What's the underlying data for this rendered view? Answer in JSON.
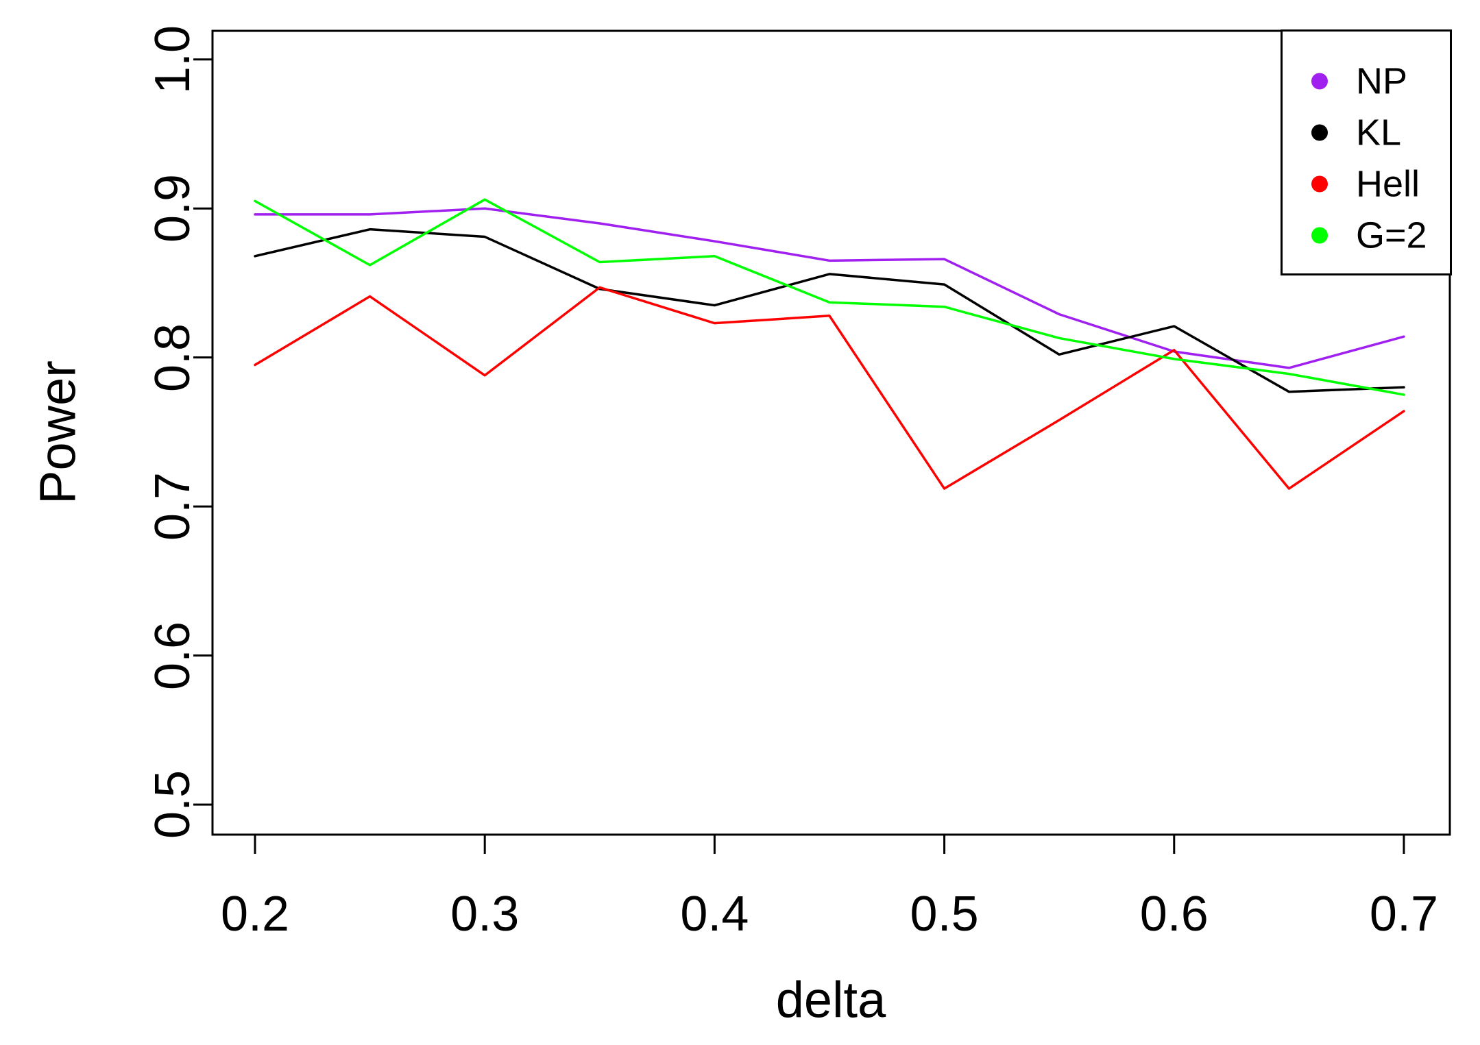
{
  "page": {
    "background": "#ffffff",
    "text_color": "#000000"
  },
  "chart_data": {
    "type": "line",
    "title": "",
    "xlabel": "delta",
    "ylabel": "Power",
    "x": [
      0.2,
      0.25,
      0.3,
      0.35,
      0.4,
      0.45,
      0.5,
      0.55,
      0.6,
      0.65,
      0.7
    ],
    "series": [
      {
        "name": "NP",
        "color": "#A020F0",
        "values": [
          0.896,
          0.896,
          0.9,
          0.89,
          0.878,
          0.865,
          0.866,
          0.829,
          0.804,
          0.793,
          0.814
        ]
      },
      {
        "name": "KL",
        "color": "#000000",
        "values": [
          0.868,
          0.886,
          0.881,
          0.846,
          0.835,
          0.856,
          0.849,
          0.802,
          0.821,
          0.777,
          0.78
        ]
      },
      {
        "name": "Hell",
        "color": "#FF0000",
        "values": [
          0.795,
          0.841,
          0.788,
          0.847,
          0.823,
          0.828,
          0.712,
          0.758,
          0.805,
          0.712,
          0.764
        ]
      },
      {
        "name": "G=2",
        "color": "#00FF00",
        "values": [
          0.905,
          0.862,
          0.906,
          0.864,
          0.868,
          0.837,
          0.834,
          0.813,
          0.799,
          0.789,
          0.775
        ]
      }
    ],
    "x_ticks": {
      "values": [
        0.2,
        0.3,
        0.4,
        0.5,
        0.6,
        0.7
      ],
      "labels": [
        "0.2",
        "0.3",
        "0.4",
        "0.5",
        "0.6",
        "0.7"
      ]
    },
    "y_ticks": {
      "values": [
        0.5,
        0.6,
        0.7,
        0.8,
        0.9,
        1.0
      ],
      "labels": [
        "0.5",
        "0.6",
        "0.7",
        "0.8",
        "0.9",
        "1.0"
      ]
    },
    "xlim": [
      0.1815,
      0.72
    ],
    "ylim": [
      0.4798,
      1.0192
    ],
    "grid": false,
    "legend_position": "topright",
    "line_width": 3.5
  }
}
